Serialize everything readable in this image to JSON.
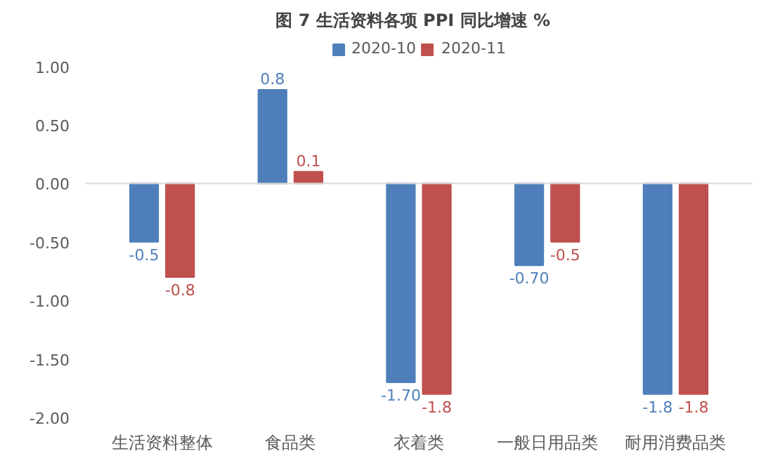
{
  "chart_data": {
    "type": "bar",
    "title": "图 7   生活资料各项 PPI 同比增速 %",
    "categories": [
      "生活资料整体",
      "食品类",
      "衣着类",
      "一般日用品类",
      "耐用消费品类"
    ],
    "series": [
      {
        "name": "2020-10",
        "color": "#4e7fbb",
        "values": [
          -0.5,
          0.8,
          -1.7,
          -0.7,
          -1.8
        ],
        "value_labels": [
          "-0.5",
          "0.8",
          "-1.70",
          "-0.70",
          "-1.8"
        ]
      },
      {
        "name": "2020-11",
        "color": "#c0504d",
        "values": [
          -0.8,
          0.1,
          -1.8,
          -0.5,
          -1.8
        ],
        "value_labels": [
          "-0.8",
          "0.1",
          "-1.8",
          "-0.5",
          "-1.8"
        ]
      }
    ],
    "ylim": [
      -2.0,
      1.25
    ],
    "yticks": [
      {
        "value": 1.0,
        "label": "1.00"
      },
      {
        "value": 0.5,
        "label": "0.50"
      },
      {
        "value": 0,
        "label": "0.00"
      },
      {
        "value": -0.5,
        "label": "-0.50"
      },
      {
        "value": -1.0,
        "label": "-1.00"
      },
      {
        "value": -1.5,
        "label": "-1.50"
      },
      {
        "value": -2.0,
        "label": "-2.00"
      }
    ],
    "ref_lines": [
      {
        "axis": "y",
        "value": 0,
        "color": "#d9d9d9"
      }
    ],
    "grid": false,
    "legend": "top"
  }
}
